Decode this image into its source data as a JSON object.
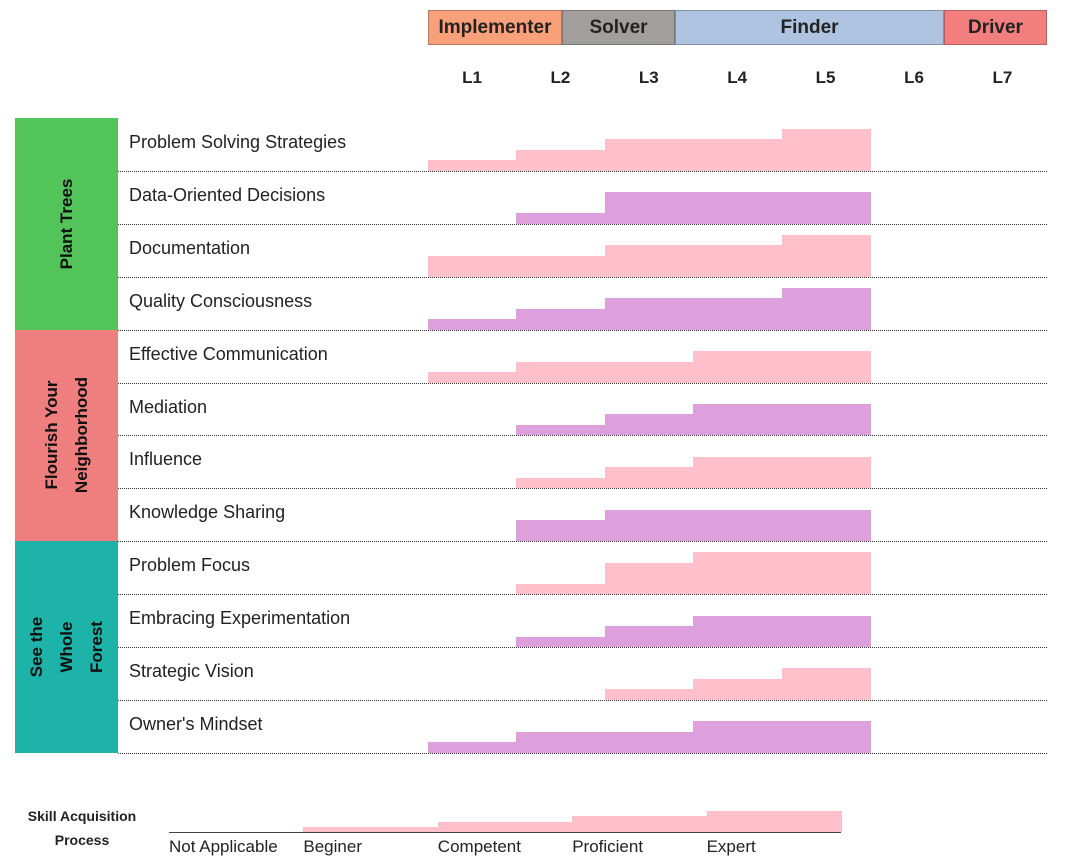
{
  "chart_data": {
    "type": "bar",
    "roles": [
      {
        "label": "Implementer",
        "color": "#F8A07A"
      },
      {
        "label": "Solver",
        "color": "#A39E9E"
      },
      {
        "label": "Finder",
        "color": "#ADC3DF"
      },
      {
        "label": "Driver",
        "color": "#F27E7E"
      }
    ],
    "levels": [
      "L1",
      "L2",
      "L3",
      "L4",
      "L5",
      "L6",
      "L7"
    ],
    "groups": [
      {
        "label": "Plant Trees",
        "color": "#52C45A"
      },
      {
        "label": "Flourish Your\nNeighborhood",
        "color": "#EF7F7F"
      },
      {
        "label": "See the\nWhole\nForest",
        "color": "#1DB3A8"
      }
    ],
    "skills": [
      {
        "name": "Problem Solving Strategies",
        "group": 0,
        "color": "#FFC0CB",
        "values": [
          1,
          2,
          3,
          3,
          4,
          0,
          0
        ]
      },
      {
        "name": "Data-Oriented Decisions",
        "group": 0,
        "color": "#DDA0DD",
        "values": [
          0,
          1,
          3,
          3,
          3,
          0,
          0
        ]
      },
      {
        "name": "Documentation",
        "group": 0,
        "color": "#FFC0CB",
        "values": [
          2,
          2,
          3,
          3,
          4,
          0,
          0
        ]
      },
      {
        "name": "Quality Consciousness",
        "group": 0,
        "color": "#DDA0DD",
        "values": [
          1,
          2,
          3,
          3,
          4,
          0,
          0
        ]
      },
      {
        "name": "Effective Communication",
        "group": 1,
        "color": "#FFC0CB",
        "values": [
          1,
          2,
          2,
          3,
          3,
          0,
          0
        ]
      },
      {
        "name": "Mediation",
        "group": 1,
        "color": "#DDA0DD",
        "values": [
          0,
          1,
          2,
          3,
          3,
          0,
          0
        ]
      },
      {
        "name": "Influence",
        "group": 1,
        "color": "#FFC0CB",
        "values": [
          0,
          1,
          2,
          3,
          3,
          0,
          0
        ]
      },
      {
        "name": "Knowledge Sharing",
        "group": 1,
        "color": "#DDA0DD",
        "values": [
          0,
          2,
          3,
          3,
          3,
          0,
          0
        ]
      },
      {
        "name": "Problem Focus",
        "group": 2,
        "color": "#FFC0CB",
        "values": [
          0,
          1,
          3,
          4,
          4,
          0,
          0
        ]
      },
      {
        "name": "Embracing Experimentation",
        "group": 2,
        "color": "#DDA0DD",
        "values": [
          0,
          1,
          2,
          3,
          3,
          0,
          0
        ]
      },
      {
        "name": "Strategic Vision",
        "group": 2,
        "color": "#FFC0CB",
        "values": [
          0,
          0,
          1,
          2,
          3,
          0,
          0
        ]
      },
      {
        "name": "Owner's Mindset",
        "group": 2,
        "color": "#DDA0DD",
        "values": [
          1,
          2,
          2,
          3,
          3,
          0,
          0
        ]
      }
    ],
    "legend": {
      "title": "Skill Acquisition\nProcess",
      "color": "#FFC0CB",
      "stages": [
        "Not Applicable",
        "Beginer",
        "Competent",
        "Proficient",
        "Expert"
      ]
    },
    "ylim": [
      0,
      4
    ]
  }
}
